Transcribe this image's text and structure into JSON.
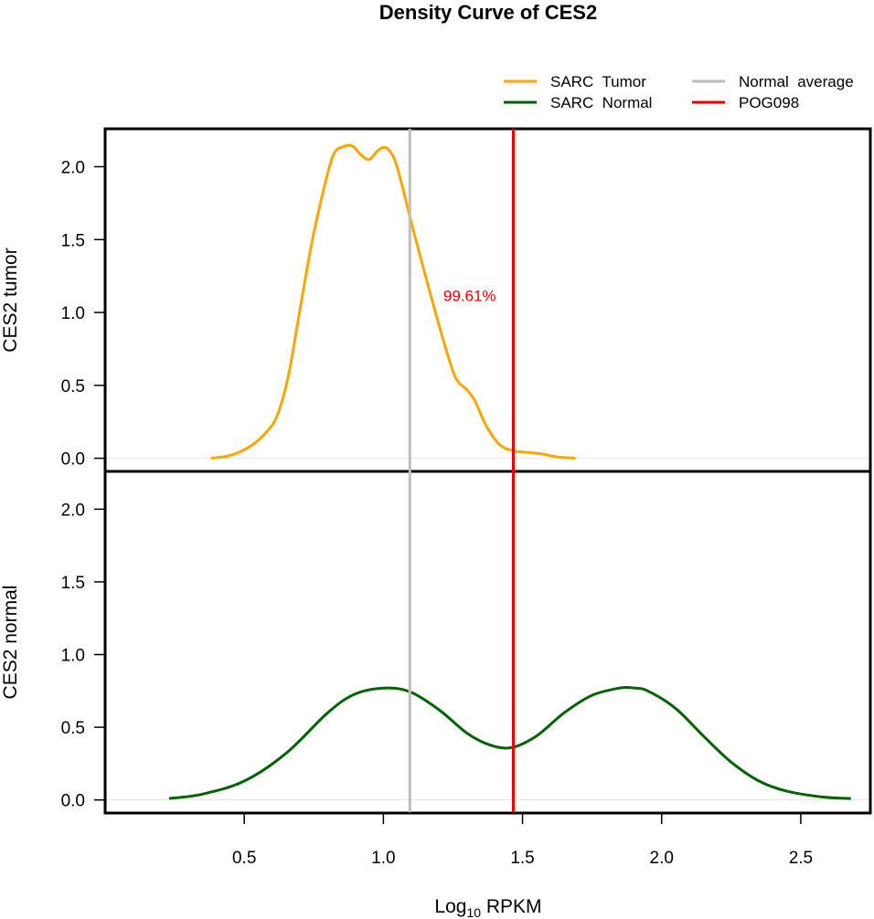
{
  "chart_data": {
    "type": "line",
    "title": "Density Curve of  CES2",
    "xlabel_main": "Log",
    "xlabel_sub": "10",
    "xlabel_rest": " RPKM",
    "xlim": [
      0.0,
      2.75
    ],
    "x_ticks": [
      0.5,
      1.0,
      1.5,
      2.0,
      2.5
    ],
    "x_tick_labels": [
      "0.5",
      "1.0",
      "1.5",
      "2.0",
      "2.5"
    ],
    "grid": false,
    "legend": {
      "placement": "top-right",
      "entries": [
        {
          "label": "SARC  Tumor",
          "color": "#FFA500"
        },
        {
          "label": "SARC  Normal",
          "color": "#006400"
        },
        {
          "label": "Normal  average",
          "color": "#BEBEBE"
        },
        {
          "label": "POG098",
          "color": "#EE0000"
        }
      ]
    },
    "vlines": [
      {
        "name": "Normal average",
        "x": 1.095,
        "color": "#BEBEBE"
      },
      {
        "name": "POG098",
        "x": 1.467,
        "color": "#EE0000"
      }
    ],
    "annotation": {
      "text": "99.61%",
      "x": 1.31,
      "y": 1.08,
      "color": "#EE0000"
    },
    "panels": [
      {
        "ylabel": "CES2  tumor",
        "ylim": [
          -0.09,
          2.26
        ],
        "y_ticks": [
          0.0,
          0.5,
          1.0,
          1.5,
          2.0
        ],
        "y_tick_labels": [
          "0.0",
          "0.5",
          "1.0",
          "1.5",
          "2.0"
        ],
        "series": {
          "name": "SARC  Tumor",
          "color": "#FFA500",
          "x": [
            0.38,
            0.45,
            0.52,
            0.58,
            0.62,
            0.66,
            0.7,
            0.74,
            0.78,
            0.82,
            0.86,
            0.89,
            0.92,
            0.95,
            0.98,
            1.01,
            1.04,
            1.07,
            1.1,
            1.14,
            1.18,
            1.22,
            1.26,
            1.3,
            1.33,
            1.37,
            1.42,
            1.47,
            1.52,
            1.57,
            1.62,
            1.69
          ],
          "y": [
            0.0,
            0.02,
            0.08,
            0.18,
            0.3,
            0.58,
            1.02,
            1.45,
            1.8,
            2.08,
            2.14,
            2.14,
            2.08,
            2.05,
            2.11,
            2.13,
            2.05,
            1.85,
            1.62,
            1.33,
            1.05,
            0.78,
            0.55,
            0.47,
            0.39,
            0.22,
            0.09,
            0.05,
            0.04,
            0.03,
            0.01,
            0.0
          ]
        }
      },
      {
        "ylabel": "CES2  normal",
        "ylim": [
          -0.09,
          2.26
        ],
        "y_ticks": [
          0.0,
          0.5,
          1.0,
          1.5,
          2.0
        ],
        "y_tick_labels": [
          "0.0",
          "0.5",
          "1.0",
          "1.5",
          "2.0"
        ],
        "series": {
          "name": "SARC  Normal",
          "color": "#006400",
          "x": [
            0.23,
            0.35,
            0.5,
            0.65,
            0.8,
            0.9,
            1.01,
            1.1,
            1.2,
            1.3,
            1.38,
            1.46,
            1.55,
            1.65,
            1.75,
            1.85,
            1.9,
            1.95,
            2.05,
            2.15,
            2.25,
            2.35,
            2.45,
            2.58,
            2.68
          ],
          "y": [
            0.01,
            0.04,
            0.13,
            0.32,
            0.6,
            0.73,
            0.77,
            0.74,
            0.62,
            0.46,
            0.38,
            0.36,
            0.44,
            0.6,
            0.72,
            0.77,
            0.77,
            0.75,
            0.63,
            0.44,
            0.26,
            0.13,
            0.06,
            0.02,
            0.01
          ]
        }
      }
    ]
  }
}
